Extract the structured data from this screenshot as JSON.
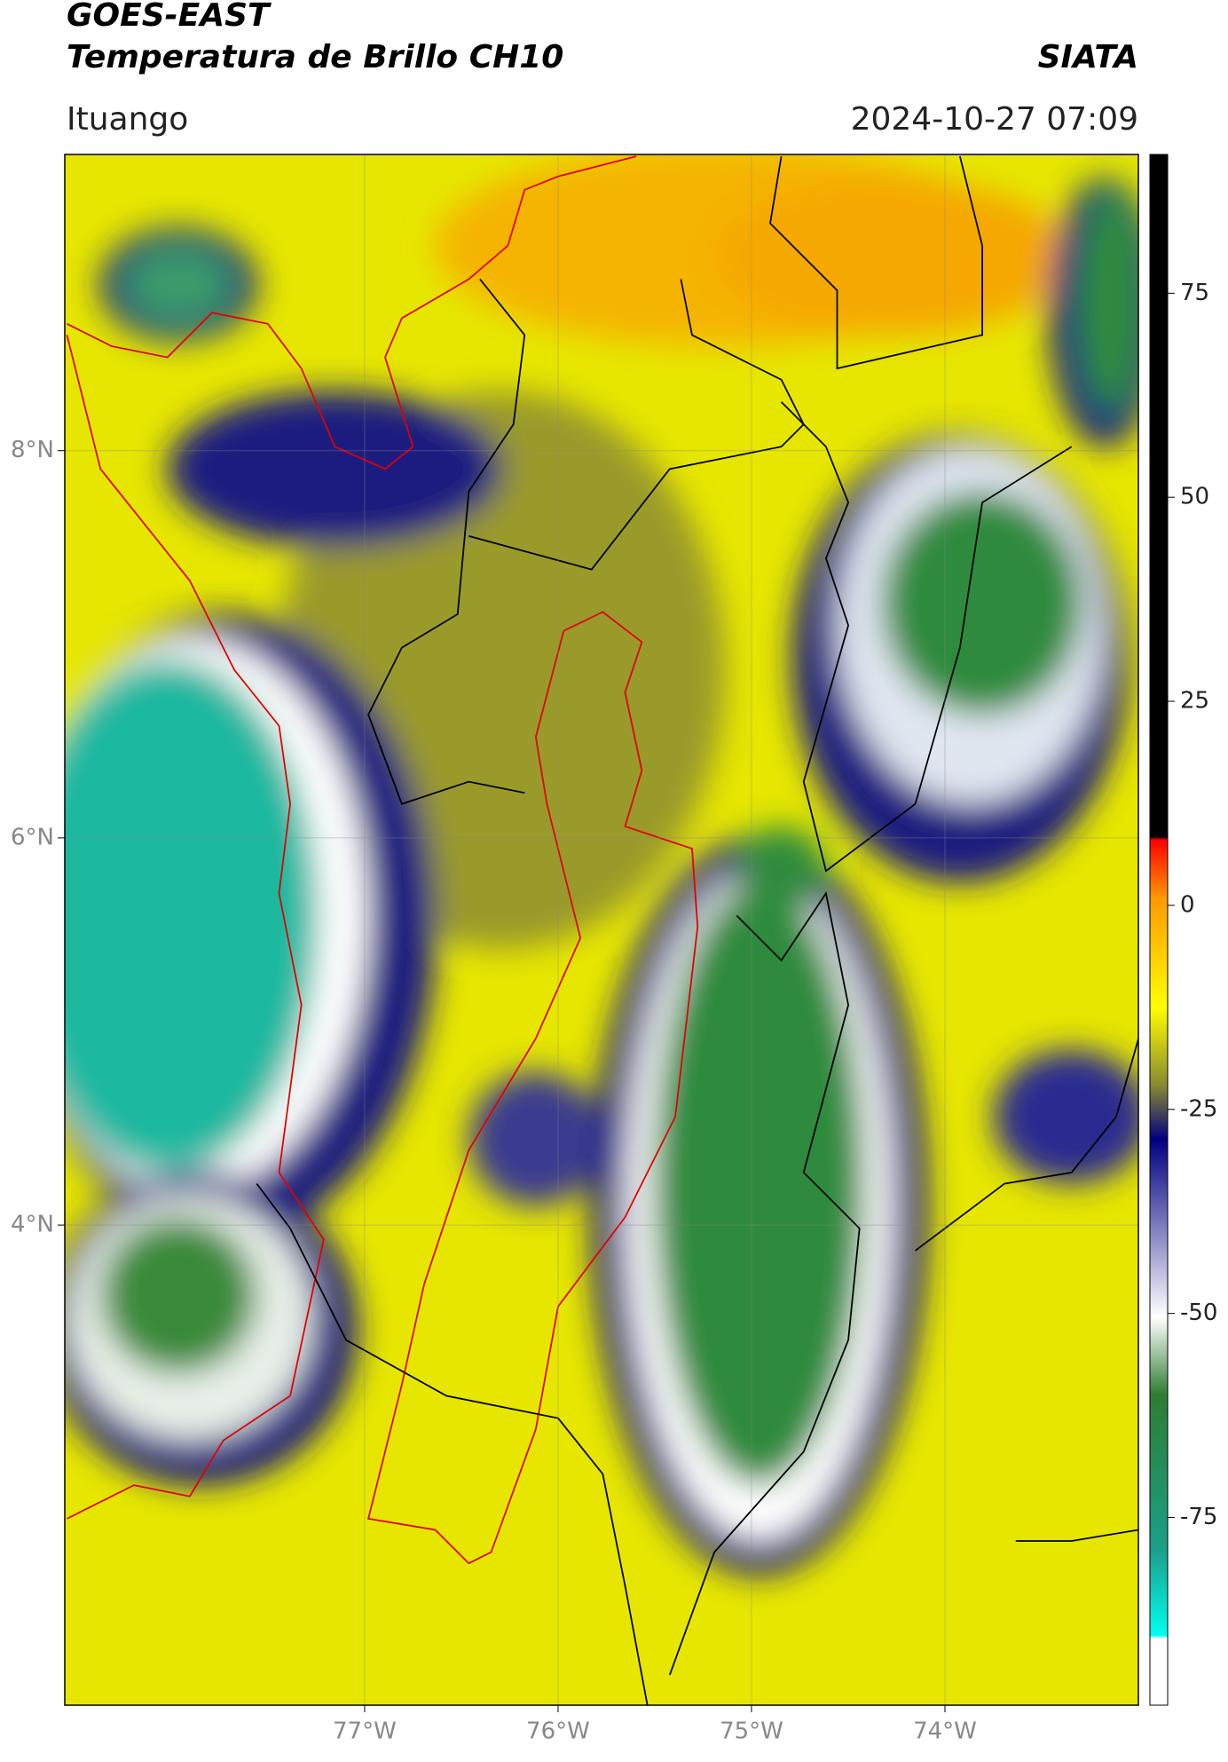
{
  "header": {
    "title": "GOES-EAST",
    "subtitle": "Temperatura de Brillo CH10",
    "source": "SIATA",
    "location": "Ituango",
    "datetime": "2024-10-27 07:09"
  },
  "chart_data": {
    "type": "map",
    "xlim": [
      -78.55,
      -73
    ],
    "ylim": [
      1.52,
      9.53
    ],
    "xticks": [
      {
        "value": -77,
        "label": "77°W"
      },
      {
        "value": -76,
        "label": "76°W"
      },
      {
        "value": -75,
        "label": "75°W"
      },
      {
        "value": -74,
        "label": "74°W"
      }
    ],
    "yticks": [
      {
        "value": 8,
        "label": "8°N"
      },
      {
        "value": 6,
        "label": "6°N"
      },
      {
        "value": 4,
        "label": "4°N"
      }
    ],
    "grid": true,
    "colorbar": {
      "lim": [
        -98,
        92
      ],
      "ticks": [
        75,
        50,
        25,
        0,
        -25,
        -50,
        -75
      ]
    }
  }
}
